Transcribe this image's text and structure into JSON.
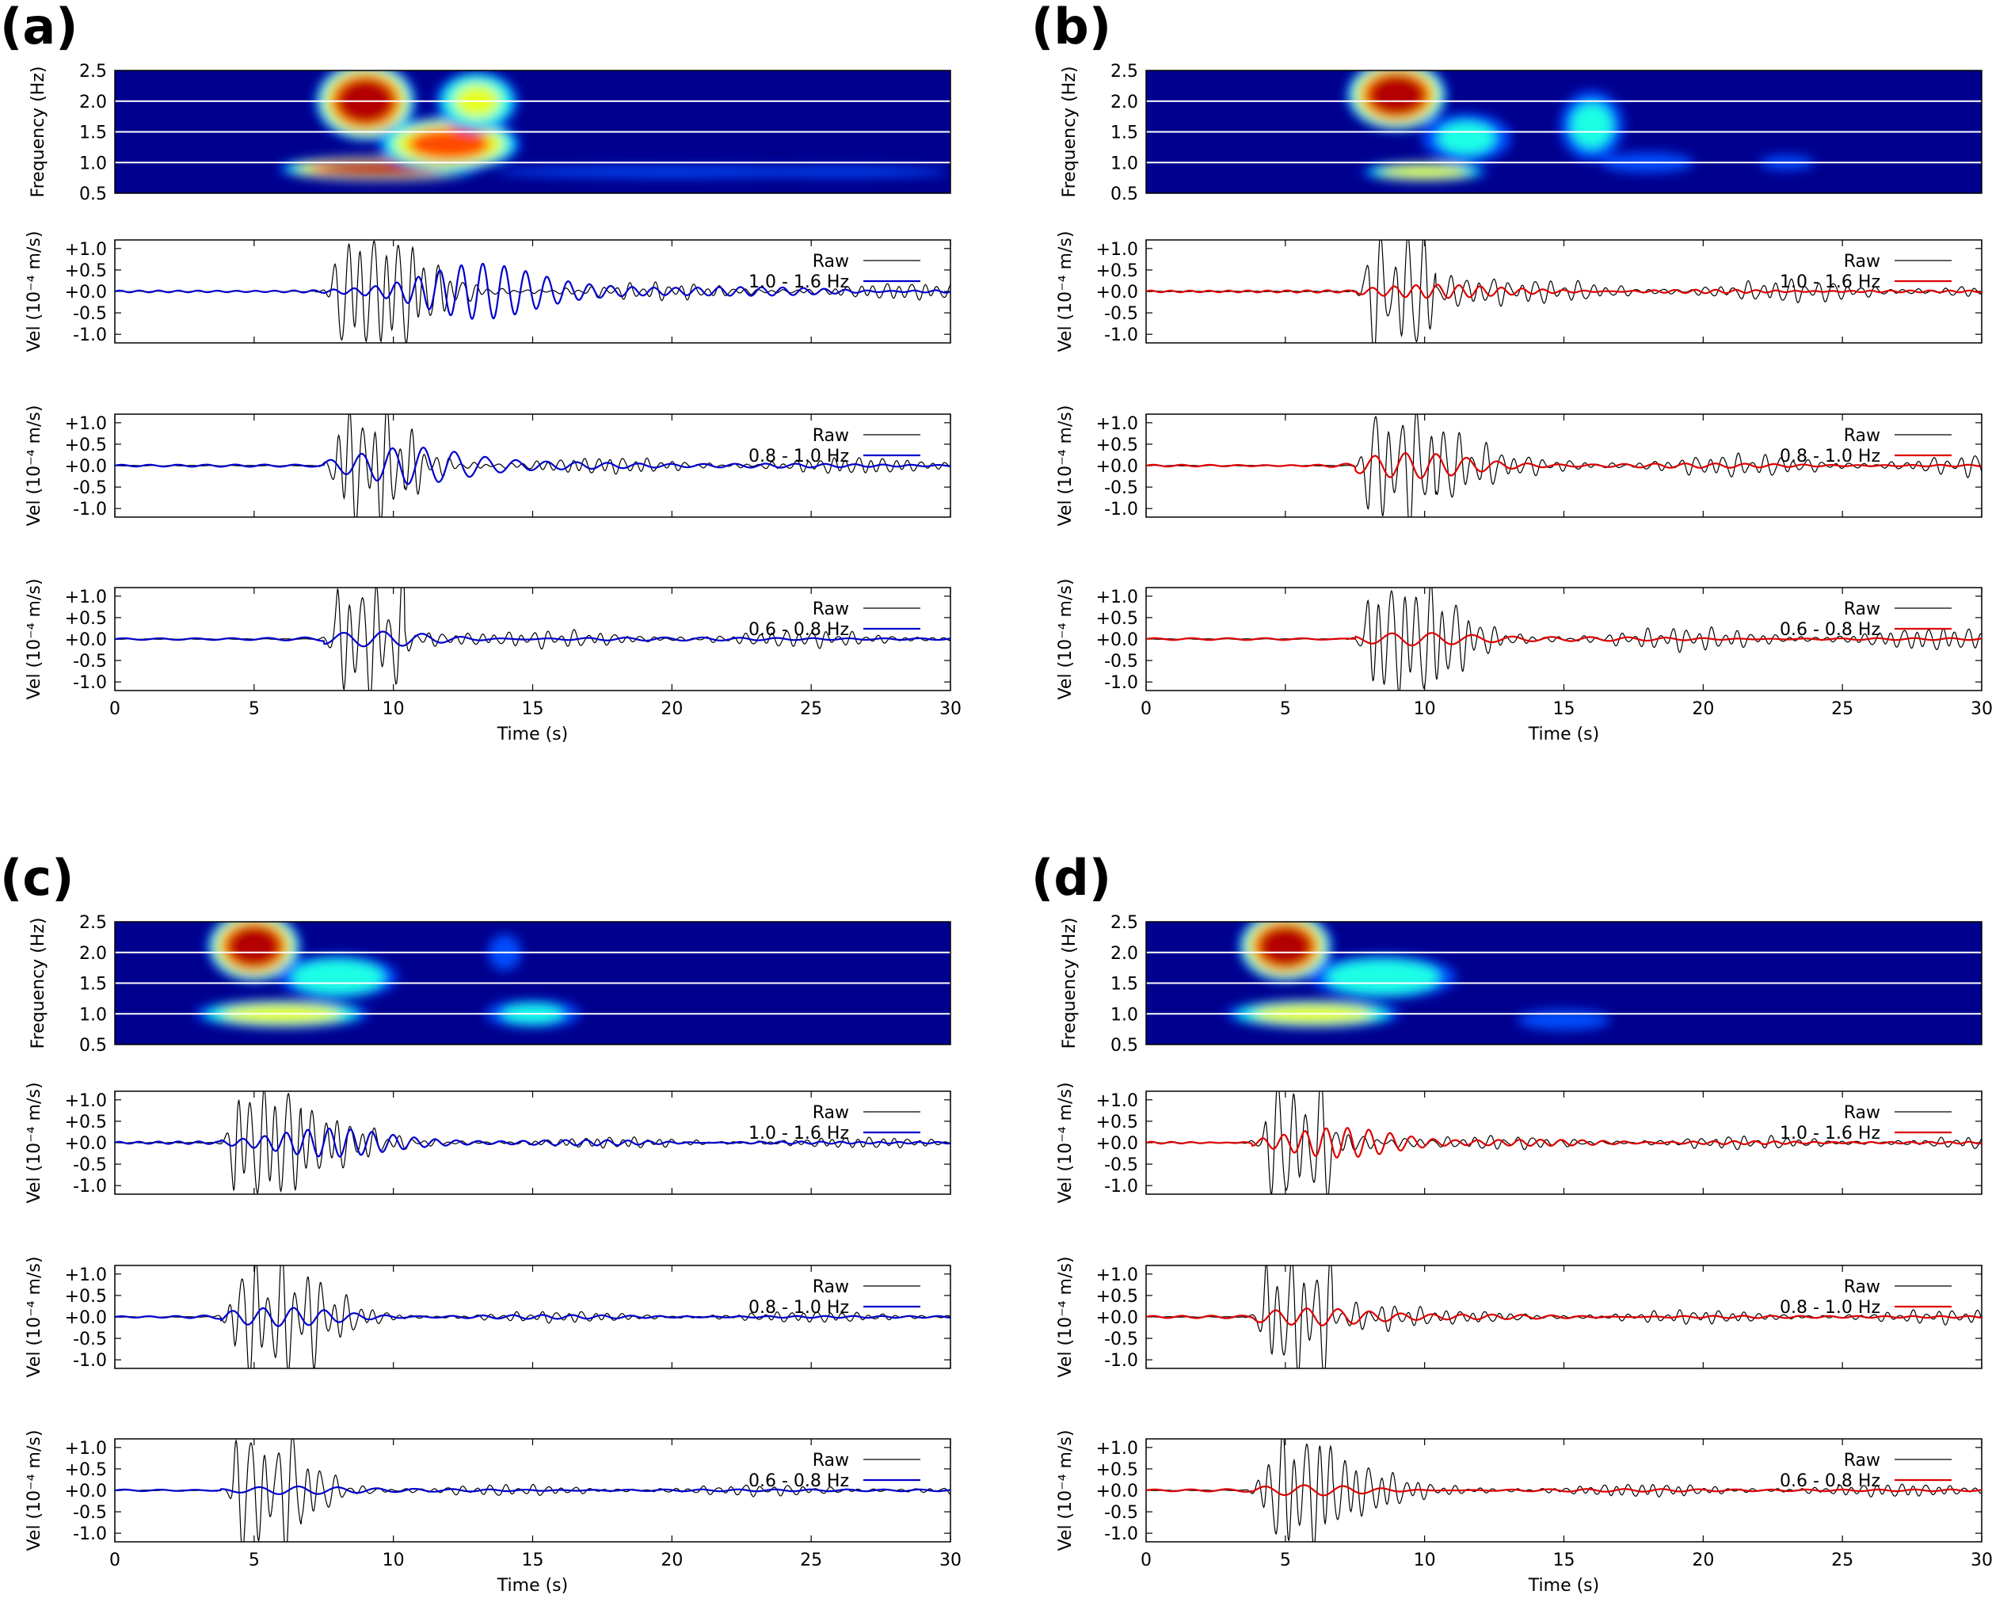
{
  "chart_data": [
    {
      "panel": "(a)",
      "filtered_color": "#0000cc",
      "spectrogram": {
        "type": "heatmap",
        "ylabel": "Frequency (Hz)",
        "ylim": [
          0.5,
          2.5
        ],
        "yticks": [
          "0.5",
          "1.0",
          "1.5",
          "2.0",
          "2.5"
        ],
        "blobs": [
          [
            9,
            2.0,
            1.4,
            0.5,
            1
          ],
          [
            9.5,
            0.9,
            2.8,
            0.15,
            1
          ],
          [
            12,
            1.3,
            2.0,
            0.35,
            0.85
          ],
          [
            13,
            2.0,
            1.2,
            0.4,
            0.6
          ],
          [
            20,
            0.85,
            6,
            0.08,
            0.3
          ],
          [
            26,
            0.85,
            4,
            0.08,
            0.25
          ]
        ]
      },
      "traces": [
        {
          "type": "line",
          "ylabel": "Vel (10⁻⁴ m/s)",
          "yticks": [
            "+1.0",
            "+0.5",
            "+0.0",
            "-0.5",
            "-1.0"
          ],
          "ylim": [
            -1.2,
            1.2
          ],
          "legend": [
            "Raw",
            "1.0 - 1.6 Hz"
          ],
          "raw_onset": 8,
          "raw_peak": 1.2,
          "raw_tail": 0.15,
          "filt_peak": 0.6,
          "filt_freq": 1.3,
          "filt_center": 13
        },
        {
          "type": "line",
          "ylabel": "Vel (10⁻⁴ m/s)",
          "yticks": [
            "+1.0",
            "+0.5",
            "+0.0",
            "-0.5",
            "-1.0"
          ],
          "ylim": [
            -1.2,
            1.2
          ],
          "legend": [
            "Raw",
            "0.8 - 1.0 Hz"
          ],
          "raw_onset": 8,
          "raw_peak": 1.2,
          "raw_tail": 0.15,
          "filt_peak": 0.4,
          "filt_freq": 0.9,
          "filt_center": 10.5
        },
        {
          "type": "line",
          "ylabel": "Vel (10⁻⁴ m/s)",
          "yticks": [
            "+1.0",
            "+0.5",
            "+0.0",
            "-0.5",
            "-1.0"
          ],
          "ylim": [
            -1.2,
            1.2
          ],
          "legend": [
            "Raw",
            "0.6 - 0.8 Hz"
          ],
          "raw_onset": 8,
          "raw_peak": 1.2,
          "raw_tail": 0.15,
          "filt_peak": 0.15,
          "filt_freq": 0.7,
          "filt_center": 9.5
        }
      ],
      "xlabel": "Time (s)",
      "xlim": [
        0,
        30
      ],
      "xticks": [
        "0",
        "5",
        "10",
        "15",
        "20",
        "25",
        "30"
      ]
    },
    {
      "panel": "(b)",
      "filtered_color": "#dd0000",
      "spectrogram": {
        "type": "heatmap",
        "ylabel": "Frequency (Hz)",
        "ylim": [
          0.5,
          2.5
        ],
        "yticks": [
          "0.5",
          "1.0",
          "1.5",
          "2.0",
          "2.5"
        ],
        "blobs": [
          [
            9,
            2.1,
            1.4,
            0.45,
            1
          ],
          [
            10,
            0.85,
            1.8,
            0.12,
            0.7
          ],
          [
            11.5,
            1.4,
            1.4,
            0.35,
            0.4
          ],
          [
            16,
            1.6,
            1.0,
            0.5,
            0.4
          ],
          [
            18,
            1.0,
            1.5,
            0.15,
            0.35
          ],
          [
            23,
            1.0,
            1.0,
            0.12,
            0.25
          ]
        ]
      },
      "traces": [
        {
          "type": "line",
          "ylabel": "Vel (10⁻⁴ m/s)",
          "yticks": [
            "+1.0",
            "+0.5",
            "+0.0",
            "-0.5",
            "-1.0"
          ],
          "ylim": [
            -1.2,
            1.2
          ],
          "legend": [
            "Raw",
            "1.0 - 1.6 Hz"
          ],
          "raw_onset": 8,
          "raw_peak": 1.2,
          "raw_tail": 0.2,
          "filt_peak": 0.15,
          "filt_freq": 1.3,
          "filt_center": 10
        },
        {
          "type": "line",
          "ylabel": "Vel (10⁻⁴ m/s)",
          "yticks": [
            "+1.0",
            "+0.5",
            "+0.0",
            "-0.5",
            "-1.0"
          ],
          "ylim": [
            -1.2,
            1.2
          ],
          "legend": [
            "Raw",
            "0.8 - 1.0 Hz"
          ],
          "raw_onset": 8,
          "raw_peak": 1.2,
          "raw_tail": 0.2,
          "filt_peak": 0.25,
          "filt_freq": 0.9,
          "filt_center": 9.5
        },
        {
          "type": "line",
          "ylabel": "Vel (10⁻⁴ m/s)",
          "yticks": [
            "+1.0",
            "+0.5",
            "+0.0",
            "-0.5",
            "-1.0"
          ],
          "ylim": [
            -1.2,
            1.2
          ],
          "legend": [
            "Raw",
            "0.6 - 0.8 Hz"
          ],
          "raw_onset": 8,
          "raw_peak": 1.2,
          "raw_tail": 0.2,
          "filt_peak": 0.15,
          "filt_freq": 0.7,
          "filt_center": 9.5
        }
      ],
      "xlabel": "Time (s)",
      "xlim": [
        0,
        30
      ],
      "xticks": [
        "0",
        "5",
        "10",
        "15",
        "20",
        "25",
        "30"
      ]
    },
    {
      "panel": "(c)",
      "filtered_color": "#0000cc",
      "spectrogram": {
        "type": "heatmap",
        "ylabel": "Frequency (Hz)",
        "ylim": [
          0.5,
          2.5
        ],
        "yticks": [
          "0.5",
          "1.0",
          "1.5",
          "2.0",
          "2.5"
        ],
        "blobs": [
          [
            5,
            2.1,
            1.3,
            0.45,
            1
          ],
          [
            6,
            1.0,
            2.5,
            0.18,
            0.7
          ],
          [
            8,
            1.6,
            1.8,
            0.3,
            0.5
          ],
          [
            15,
            1.0,
            1.5,
            0.2,
            0.4
          ],
          [
            14,
            2.0,
            0.6,
            0.3,
            0.25
          ]
        ]
      },
      "traces": [
        {
          "type": "line",
          "ylabel": "Vel (10⁻⁴ m/s)",
          "yticks": [
            "+1.0",
            "+0.5",
            "+0.0",
            "-0.5",
            "-1.0"
          ],
          "ylim": [
            -1.2,
            1.2
          ],
          "legend": [
            "Raw",
            "1.0 - 1.6 Hz"
          ],
          "raw_onset": 4.3,
          "raw_peak": 1.2,
          "raw_tail": 0.1,
          "filt_peak": 0.3,
          "filt_freq": 1.3,
          "filt_center": 7.5
        },
        {
          "type": "line",
          "ylabel": "Vel (10⁻⁴ m/s)",
          "yticks": [
            "+1.0",
            "+0.5",
            "+0.0",
            "-0.5",
            "-1.0"
          ],
          "ylim": [
            -1.2,
            1.2
          ],
          "legend": [
            "Raw",
            "0.8 - 1.0 Hz"
          ],
          "raw_onset": 4.3,
          "raw_peak": 1.2,
          "raw_tail": 0.1,
          "filt_peak": 0.18,
          "filt_freq": 0.9,
          "filt_center": 6
        },
        {
          "type": "line",
          "ylabel": "Vel (10⁻⁴ m/s)",
          "yticks": [
            "+1.0",
            "+0.5",
            "+0.0",
            "-0.5",
            "-1.0"
          ],
          "ylim": [
            -1.2,
            1.2
          ],
          "legend": [
            "Raw",
            "0.6 - 0.8 Hz"
          ],
          "raw_onset": 4.3,
          "raw_peak": 1.2,
          "raw_tail": 0.1,
          "filt_peak": 0.08,
          "filt_freq": 0.7,
          "filt_center": 6
        }
      ],
      "xlabel": "Time (s)",
      "xlim": [
        0,
        30
      ],
      "xticks": [
        "0",
        "5",
        "10",
        "15",
        "20",
        "25",
        "30"
      ]
    },
    {
      "panel": "(d)",
      "filtered_color": "#dd0000",
      "spectrogram": {
        "type": "heatmap",
        "ylabel": "Frequency (Hz)",
        "ylim": [
          0.5,
          2.5
        ],
        "yticks": [
          "0.5",
          "1.0",
          "1.5",
          "2.0",
          "2.5"
        ],
        "blobs": [
          [
            5,
            2.1,
            1.3,
            0.45,
            1
          ],
          [
            6,
            1.0,
            2.5,
            0.18,
            0.7
          ],
          [
            8.5,
            1.6,
            2.2,
            0.3,
            0.5
          ],
          [
            15,
            0.9,
            1.5,
            0.15,
            0.35
          ]
        ]
      },
      "traces": [
        {
          "type": "line",
          "ylabel": "Vel (10⁻⁴ m/s)",
          "yticks": [
            "+1.0",
            "+0.5",
            "+0.0",
            "-0.5",
            "-1.0"
          ],
          "ylim": [
            -1.2,
            1.2
          ],
          "legend": [
            "Raw",
            "1.0 - 1.6 Hz"
          ],
          "raw_onset": 4.3,
          "raw_peak": 1.2,
          "raw_tail": 0.12,
          "filt_peak": 0.3,
          "filt_freq": 1.3,
          "filt_center": 7
        },
        {
          "type": "line",
          "ylabel": "Vel (10⁻⁴ m/s)",
          "yticks": [
            "+1.0",
            "+0.5",
            "+0.0",
            "-0.5",
            "-1.0"
          ],
          "ylim": [
            -1.2,
            1.2
          ],
          "legend": [
            "Raw",
            "0.8 - 1.0 Hz"
          ],
          "raw_onset": 4.3,
          "raw_peak": 1.2,
          "raw_tail": 0.12,
          "filt_peak": 0.2,
          "filt_freq": 0.9,
          "filt_center": 6
        },
        {
          "type": "line",
          "ylabel": "Vel (10⁻⁴ m/s)",
          "yticks": [
            "+1.0",
            "+0.5",
            "+0.0",
            "-0.5",
            "-1.0"
          ],
          "ylim": [
            -1.2,
            1.2
          ],
          "legend": [
            "Raw",
            "0.6 - 0.8 Hz"
          ],
          "raw_onset": 4.3,
          "raw_peak": 1.2,
          "raw_tail": 0.12,
          "filt_peak": 0.1,
          "filt_freq": 0.7,
          "filt_center": 6
        }
      ],
      "xlabel": "Time (s)",
      "xlim": [
        0,
        30
      ],
      "xticks": [
        "0",
        "5",
        "10",
        "15",
        "20",
        "25",
        "30"
      ]
    }
  ]
}
